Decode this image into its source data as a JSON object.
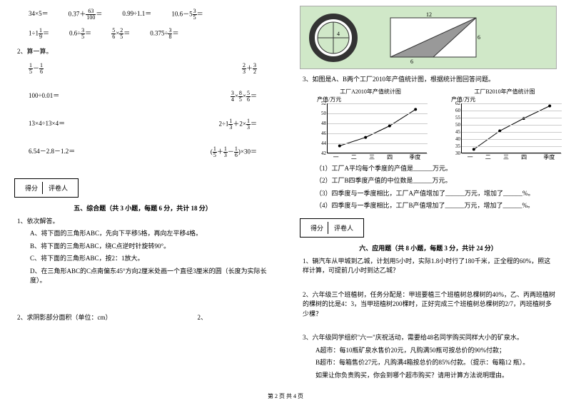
{
  "left": {
    "eqRow1": [
      "34×5＝",
      "0.37＋ 63/100 ＝",
      "0.99÷1.1＝",
      "10.6－5 3/5 ＝"
    ],
    "eqRow2": [
      "1÷1 1/9 ＝",
      "0.6÷ 3/5 ＝",
      "5/6 × 2/5 ＝",
      "0.375÷ 3/8 ＝"
    ],
    "calc_title": "2、算一算。",
    "grid": [
      [
        "1/5 － 1/6",
        "2/3 ＋ 3/2"
      ],
      [
        "100÷0.01＝",
        "3/4 × 8/5 × 5/6 ＝"
      ],
      [
        "13×4÷13×4＝",
        "2÷1 1/3 ＋2× 1/3 ＝"
      ],
      [
        "6.54－2.8－1.2＝",
        "( 1/5 ＋ 1/3 － 1/6 )×30＝"
      ]
    ],
    "score_header": [
      "得分",
      "评卷人"
    ],
    "section5": "五、综合题（共 3 小题，每题 6 分，共计 18 分）",
    "q1": "1、依次解答。",
    "q1a": "A、将下面的三角形ABC，先向下平移5格，再向左平移4格。",
    "q1b": "B、将下面的三角形ABC，绕C点逆时针旋转90°。",
    "q1c": "C、将下面的三角形ABC，按2：1放大。",
    "q1d": "D、在三角形ABC的C点南偏东45°方向2厘米处画一个直径3厘米的圆（长度为实际长度）。",
    "q2": "2、求阴影部分面积（单位：cm）"
  },
  "right": {
    "geo": {
      "circle_d": "4",
      "tri_w": "12",
      "tri_h": "6",
      "tri_base": "6"
    },
    "q3": "3、如图是A、B两个工厂2010年产值统计图，根据统计图回答问题。",
    "chartA": {
      "title": "工厂A2010年产值统计图",
      "ylabel": "产值/万元",
      "yticks": [
        "42",
        "44",
        "46",
        "48",
        "50",
        "52"
      ],
      "xticks": [
        "一",
        "二",
        "三",
        "四"
      ],
      "xlabel": "季度",
      "points": [
        [
          0.12,
          0.15
        ],
        [
          0.38,
          0.32
        ],
        [
          0.62,
          0.55
        ],
        [
          0.88,
          0.88
        ]
      ]
    },
    "chartB": {
      "title": "工厂B2010年产值统计图",
      "ylabel": "产值/万元",
      "yticks": [
        "30",
        "35",
        "40",
        "45",
        "50",
        "55",
        "60",
        "62"
      ],
      "xticks": [
        "一",
        "二",
        "三",
        "四"
      ],
      "xlabel": "季度",
      "points": [
        [
          0.12,
          0.08
        ],
        [
          0.38,
          0.45
        ],
        [
          0.62,
          0.7
        ],
        [
          0.88,
          0.95
        ]
      ]
    },
    "q3_1": "（1）工厂A平均每个季度的产值是______万元。",
    "q3_2": "（2）工厂B四季度产值的中位数是______万元。",
    "q3_3": "（3）四季度与一季度相比，工厂A产值增加了______万元，增加了______%。",
    "q3_4": "（4）四季度与一季度相比，工厂B产值增加了______万元，增加了______%。",
    "score_header": [
      "得分",
      "评卷人"
    ],
    "section6": "六、应用题（共 8 小题，每题 3 分，共计 24 分）",
    "q_r1": "1、辆汽车从甲城到乙城，计划用5小时，实际1.8小时行了180千米，正全程的60%，照这样计算，可提前几小时到达乙城？",
    "q_r2": "2、六年级三个班植树，任务分配是：甲班要植三个班植树总棵树的40%，乙、丙两班植树的棵树的比是4：3，当甲班植树200棵时，正好完成三个班植树总棵树的2/7，丙班植树多少棵？",
    "q_r3": "3、六年级同学组织\"六一\"庆祝活动，需要给48名同学购买同样大小的矿泉水。",
    "q_r3a": "A超市：每10瓶矿泉水售价20元，凡购满50瓶可按总价的90%付款；",
    "q_r3b": "B超市：每箱售价27元，凡购满4箱按总价的85%付款。（提示：每箱12 瓶）。",
    "q_r3c": "如果让你负责购买，你会到哪个超市购买？请用计算方法说明理由。"
  },
  "footer": "第 2 页 共 4 页"
}
